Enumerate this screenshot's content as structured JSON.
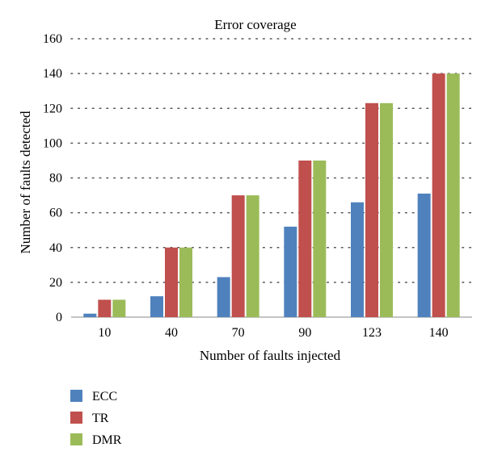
{
  "chart_data": {
    "type": "bar",
    "title": "Error coverage",
    "xlabel": "Number of faults injected",
    "ylabel": "Number of faults detected",
    "categories": [
      "10",
      "40",
      "70",
      "90",
      "123",
      "140"
    ],
    "series": [
      {
        "name": "ECC",
        "values": [
          2,
          12,
          23,
          52,
          66,
          71
        ],
        "color": "#4f81bd"
      },
      {
        "name": "TR",
        "values": [
          10,
          40,
          70,
          90,
          123,
          140
        ],
        "color": "#c0504d"
      },
      {
        "name": "DMR",
        "values": [
          10,
          40,
          70,
          90,
          123,
          140
        ],
        "color": "#9bbb59"
      }
    ],
    "ylim": [
      0,
      160
    ],
    "yticks": [
      0,
      20,
      40,
      60,
      80,
      100,
      120,
      140,
      160
    ],
    "grid": "dotted horizontal",
    "legend_position": "bottom-left"
  }
}
